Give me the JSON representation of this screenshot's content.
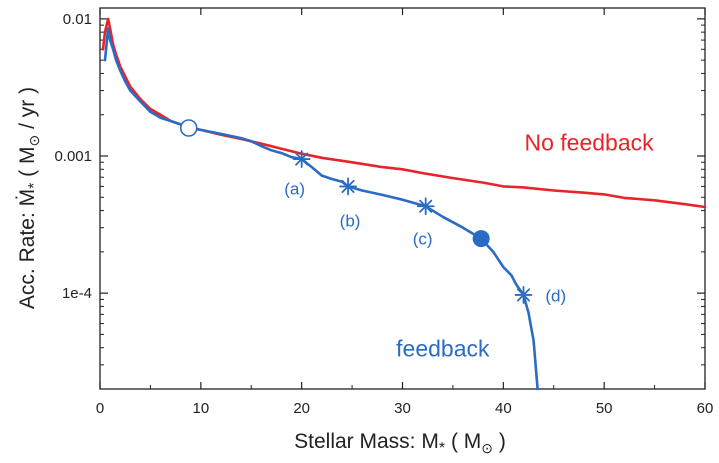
{
  "chart_data": {
    "type": "line",
    "xlabel": "Stellar Mass: M",
    "xlabel_sub": "*",
    "xlabel_unit": "( M",
    "xlabel_unit_sub": "⊙",
    "xlabel_unit_end": ")",
    "ylabel": "Acc. Rate: Ṁ",
    "ylabel_sub": "*",
    "ylabel_unit": "( M",
    "ylabel_unit_sub": "⊙",
    "ylabel_unit_end": "/ yr  )",
    "xlim": [
      0,
      60
    ],
    "ylim": [
      2e-05,
      0.012
    ],
    "yscale": "log",
    "grid": false,
    "x_ticks": [
      0,
      10,
      20,
      30,
      40,
      50,
      60
    ],
    "x_tick_labels": [
      "0",
      "10",
      "20",
      "30",
      "40",
      "50",
      "60"
    ],
    "y_ticks": [
      0.0001,
      0.001,
      0.01
    ],
    "y_tick_labels": [
      "1e-4",
      "0.001",
      "0.01"
    ],
    "series": [
      {
        "name": "No feedback",
        "color": "#e8242a",
        "x": [
          0.3,
          0.5,
          0.8,
          1.0,
          1.3,
          1.6,
          2.0,
          2.5,
          3.0,
          4.0,
          5.0,
          6.0,
          7.0,
          8.0,
          9.0,
          10,
          12,
          14,
          16,
          18,
          20,
          22,
          25,
          28,
          30,
          32,
          35,
          38,
          40,
          42,
          45,
          48,
          50,
          52,
          55,
          58,
          60
        ],
        "values": [
          0.006,
          0.008,
          0.01,
          0.0085,
          0.0065,
          0.0055,
          0.0045,
          0.0038,
          0.0032,
          0.0026,
          0.0022,
          0.002,
          0.0018,
          0.0017,
          0.0016,
          0.00155,
          0.00143,
          0.00133,
          0.00123,
          0.00113,
          0.00104,
          0.00097,
          0.0009,
          0.00083,
          0.0008,
          0.00075,
          0.00069,
          0.00064,
          0.0006,
          0.00059,
          0.00056,
          0.00054,
          0.000525,
          0.000495,
          0.000475,
          0.000445,
          0.000425
        ]
      },
      {
        "name": "feedback",
        "color": "#2a6cc4",
        "x": [
          0.5,
          0.8,
          1.0,
          1.3,
          1.6,
          2.0,
          2.5,
          3.0,
          4.0,
          5.0,
          6.0,
          7.0,
          8.0,
          8.8,
          10,
          12,
          14,
          15,
          16,
          17,
          18,
          19,
          20,
          21,
          22,
          23,
          24,
          24.6,
          26,
          28,
          30,
          32.3,
          34,
          36,
          37.8,
          39,
          40,
          40.8,
          41.3,
          42,
          42.5,
          43,
          43.2,
          43.4
        ],
        "values": [
          0.005,
          0.0085,
          0.007,
          0.006,
          0.005,
          0.0042,
          0.0035,
          0.003,
          0.0025,
          0.0021,
          0.0019,
          0.0018,
          0.0017,
          0.0016,
          0.00155,
          0.00145,
          0.00135,
          0.00128,
          0.00118,
          0.0011,
          0.00105,
          0.00098,
          0.00095,
          0.00083,
          0.00072,
          0.00068,
          0.00065,
          0.0006,
          0.00056,
          0.00052,
          0.00048,
          0.00043,
          0.00036,
          0.0003,
          0.00025,
          0.0002,
          0.000155,
          0.000135,
          0.000115,
          9.7e-05,
          7.2e-05,
          4.5e-05,
          3e-05,
          2e-05
        ]
      }
    ],
    "markers": [
      {
        "shape": "open-circle",
        "x": 8.8,
        "y": 0.0016
      },
      {
        "shape": "asterisk",
        "x": 20,
        "y": 0.00095,
        "label": "(a)",
        "label_x": 19.3,
        "label_y": 0.00058
      },
      {
        "shape": "asterisk",
        "x": 24.6,
        "y": 0.0006,
        "label": "(b)",
        "label_x": 24.8,
        "label_y": 0.00034
      },
      {
        "shape": "asterisk",
        "x": 32.3,
        "y": 0.00043,
        "label": "(c)",
        "label_x": 32.0,
        "label_y": 0.00025
      },
      {
        "shape": "filled-circle",
        "x": 37.8,
        "y": 0.00025
      },
      {
        "shape": "asterisk",
        "x": 42,
        "y": 9.7e-05,
        "label": "(d)",
        "label_x": 45.2,
        "label_y": 9.65e-05
      }
    ],
    "annotations": [
      {
        "text": "No feedback",
        "x": 48.5,
        "y": 0.00125,
        "color": "#e8242a"
      },
      {
        "text": "feedback",
        "x": 34.0,
        "y": 3.95e-05,
        "color": "#2a6cc4"
      }
    ]
  }
}
